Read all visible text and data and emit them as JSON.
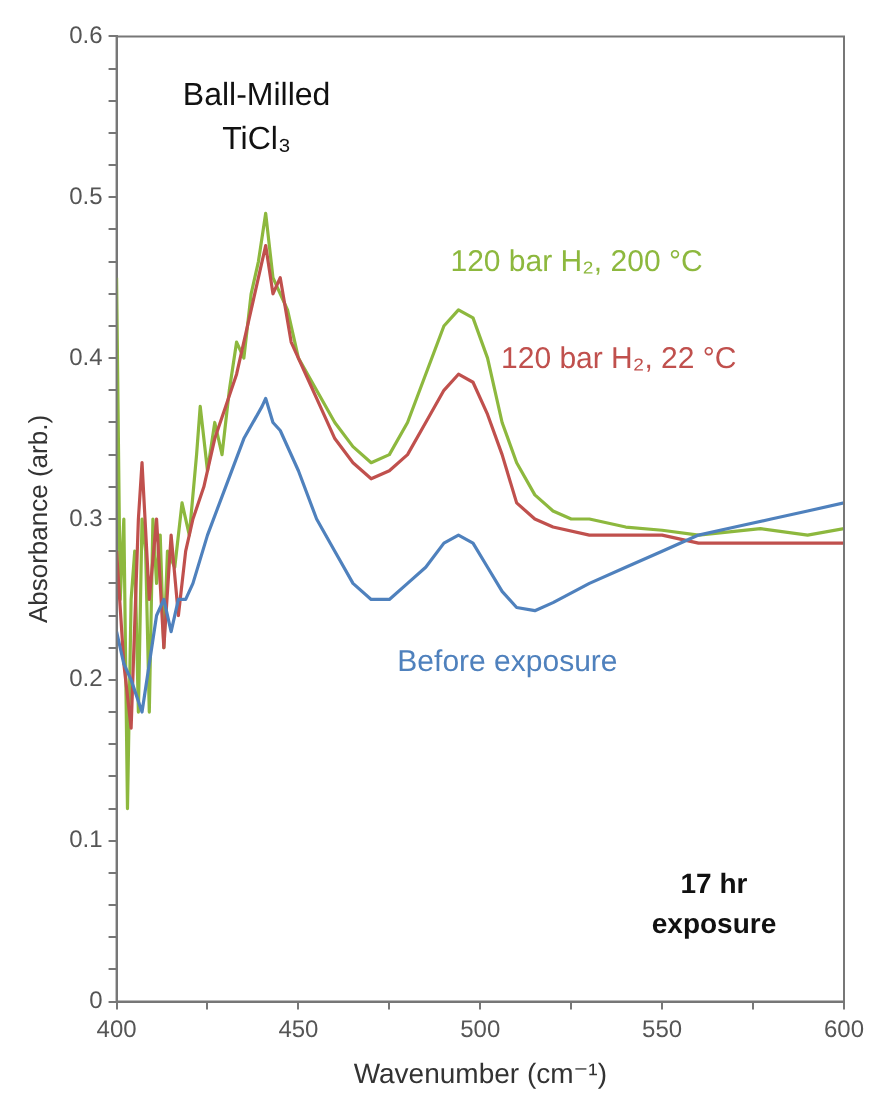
{
  "chart_data": {
    "type": "line",
    "xlabel": "Wavenumber (cm⁻¹)",
    "ylabel": "Absorbance (arb.)",
    "annotations": [
      "Ball-Milled TiCl₃",
      "17 hr exposure"
    ],
    "xlim": [
      400,
      600
    ],
    "xticks": [
      400,
      {
        "value": 425,
        "label": null
      },
      450,
      {
        "value": 475,
        "label": null
      },
      500,
      {
        "value": 525,
        "label": null
      },
      550,
      {
        "value": 575,
        "label": null
      },
      600
    ],
    "ylim": [
      0,
      0.6
    ],
    "yticks": [
      0,
      {
        "value": 0.02,
        "label": null
      },
      {
        "value": 0.04,
        "label": null
      },
      {
        "value": 0.06,
        "label": null
      },
      {
        "value": 0.08,
        "label": null
      },
      0.1,
      {
        "value": 0.12,
        "label": null
      },
      {
        "value": 0.14,
        "label": null
      },
      {
        "value": 0.16,
        "label": null
      },
      {
        "value": 0.18,
        "label": null
      },
      0.2,
      {
        "value": 0.22,
        "label": null
      },
      {
        "value": 0.24,
        "label": null
      },
      {
        "value": 0.26,
        "label": null
      },
      {
        "value": 0.28,
        "label": null
      },
      0.3,
      {
        "value": 0.32,
        "label": null
      },
      {
        "value": 0.34,
        "label": null
      },
      {
        "value": 0.36,
        "label": null
      },
      {
        "value": 0.38,
        "label": null
      },
      0.4,
      {
        "value": 0.42,
        "label": null
      },
      {
        "value": 0.44,
        "label": null
      },
      {
        "value": 0.46,
        "label": null
      },
      {
        "value": 0.48,
        "label": null
      },
      0.5,
      {
        "value": 0.52,
        "label": null
      },
      {
        "value": 0.54,
        "label": null
      },
      {
        "value": 0.56,
        "label": null
      },
      {
        "value": 0.58,
        "label": null
      },
      0.6
    ],
    "grid": false,
    "legend": false,
    "marker": "none",
    "line_style": "solid",
    "series": [
      {
        "name": "Before exposure",
        "color": "#4f81bd",
        "x": [
          400,
          402,
          404,
          407,
          409,
          411,
          413,
          415,
          417,
          419,
          421,
          425,
          430,
          435,
          440,
          441,
          443,
          445,
          450,
          455,
          460,
          465,
          470,
          475,
          480,
          485,
          490,
          494,
          498,
          502,
          506,
          510,
          515,
          520,
          530,
          540,
          550,
          560,
          570,
          580,
          590,
          600
        ],
        "values": [
          0.23,
          0.21,
          0.2,
          0.18,
          0.21,
          0.24,
          0.25,
          0.23,
          0.25,
          0.25,
          0.26,
          0.29,
          0.32,
          0.35,
          0.37,
          0.375,
          0.36,
          0.355,
          0.33,
          0.3,
          0.28,
          0.26,
          0.25,
          0.25,
          0.26,
          0.27,
          0.285,
          0.29,
          0.285,
          0.27,
          0.255,
          0.245,
          0.243,
          0.248,
          0.26,
          0.27,
          0.28,
          0.29,
          0.295,
          0.3,
          0.305,
          0.31
        ]
      },
      {
        "name": "120 bar H₂, 22 °C",
        "color": "#c0504d",
        "x": [
          400,
          402,
          404,
          406,
          407,
          409,
          411,
          413,
          415,
          417,
          419,
          421,
          424,
          427,
          430,
          433,
          436,
          439,
          441,
          443,
          445,
          448,
          452,
          456,
          460,
          465,
          470,
          475,
          480,
          485,
          490,
          494,
          498,
          502,
          506,
          510,
          515,
          520,
          530,
          540,
          550,
          560,
          570,
          580,
          590,
          600
        ],
        "values": [
          0.28,
          0.21,
          0.17,
          0.3,
          0.335,
          0.25,
          0.3,
          0.22,
          0.29,
          0.24,
          0.28,
          0.3,
          0.32,
          0.35,
          0.37,
          0.39,
          0.42,
          0.45,
          0.47,
          0.44,
          0.45,
          0.41,
          0.39,
          0.37,
          0.35,
          0.335,
          0.325,
          0.33,
          0.34,
          0.36,
          0.38,
          0.39,
          0.385,
          0.365,
          0.34,
          0.31,
          0.3,
          0.295,
          0.29,
          0.29,
          0.29,
          0.285,
          0.285,
          0.285,
          0.285,
          0.285
        ]
      },
      {
        "name": "120 bar H₂, 200 °C",
        "color": "#8db83e",
        "x": [
          400,
          401,
          402,
          403,
          404,
          405,
          406,
          407,
          408,
          409,
          410,
          411,
          412,
          413,
          414,
          416,
          418,
          420,
          422,
          423,
          425,
          427,
          429,
          431,
          433,
          435,
          437,
          439,
          441,
          443,
          445,
          447,
          450,
          455,
          460,
          465,
          470,
          475,
          480,
          485,
          490,
          494,
          498,
          502,
          506,
          510,
          515,
          520,
          525,
          530,
          540,
          550,
          560,
          577,
          590,
          600
        ],
        "values": [
          0.45,
          0.25,
          0.3,
          0.12,
          0.25,
          0.28,
          0.18,
          0.3,
          0.28,
          0.18,
          0.3,
          0.26,
          0.29,
          0.22,
          0.28,
          0.27,
          0.31,
          0.29,
          0.34,
          0.37,
          0.33,
          0.36,
          0.34,
          0.38,
          0.41,
          0.4,
          0.44,
          0.46,
          0.49,
          0.45,
          0.44,
          0.43,
          0.4,
          0.38,
          0.36,
          0.345,
          0.335,
          0.34,
          0.36,
          0.39,
          0.42,
          0.43,
          0.425,
          0.4,
          0.36,
          0.335,
          0.315,
          0.305,
          0.3,
          0.3,
          0.295,
          0.293,
          0.29,
          0.294,
          0.29,
          0.294
        ]
      }
    ]
  }
}
